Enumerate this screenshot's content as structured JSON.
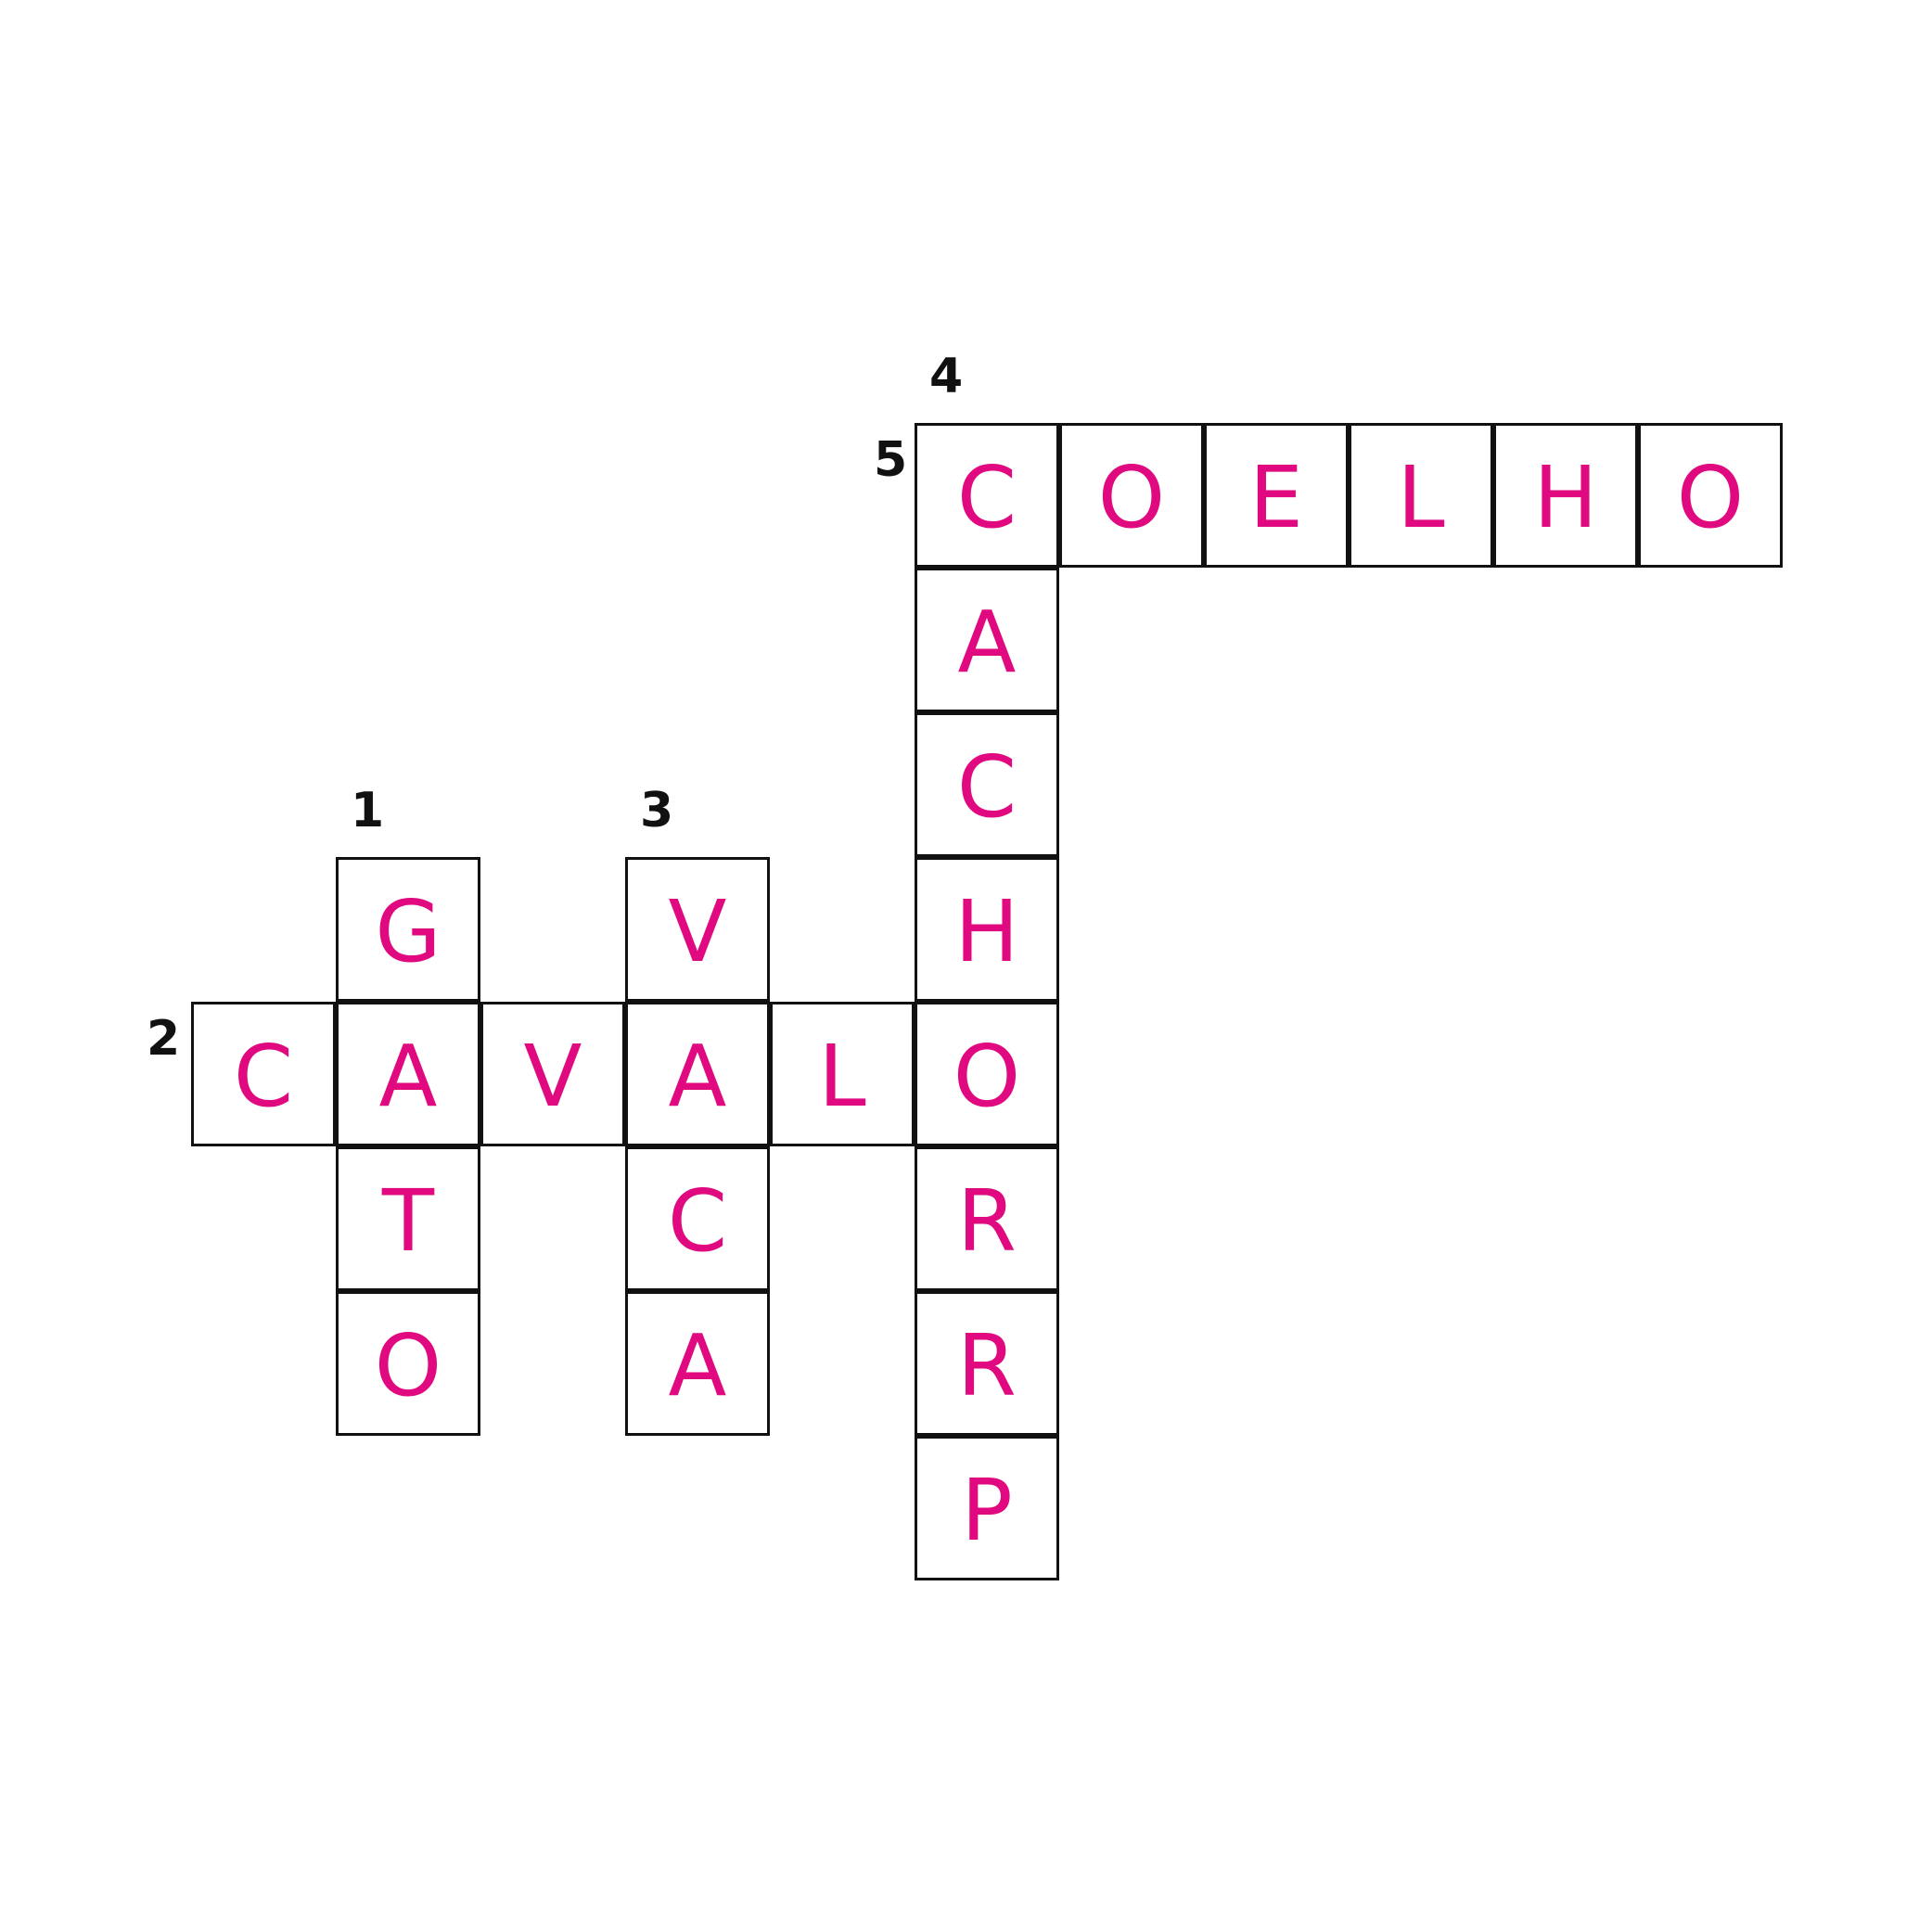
{
  "puzzle": {
    "letter_color": "#e0097f",
    "grid_line_color": "#111111",
    "clue_numbers": [
      "1",
      "2",
      "3",
      "4",
      "5"
    ],
    "words": [
      {
        "number": "1",
        "direction": "down",
        "answer": "GATO",
        "letters": [
          "G",
          "A",
          "T",
          "O"
        ]
      },
      {
        "number": "2",
        "direction": "across",
        "answer": "CAVALO",
        "letters": [
          "C",
          "A",
          "V",
          "A",
          "L",
          "O"
        ]
      },
      {
        "number": "3",
        "direction": "down",
        "answer": "VACA",
        "letters": [
          "V",
          "A",
          "C",
          "A"
        ]
      },
      {
        "number": "4",
        "direction": "down",
        "answer": "CACHORRP",
        "letters": [
          "C",
          "A",
          "C",
          "H",
          "O",
          "R",
          "R",
          "P"
        ]
      },
      {
        "number": "5",
        "direction": "across",
        "answer": "COELHO",
        "letters": [
          "C",
          "O",
          "E",
          "L",
          "H",
          "O"
        ]
      }
    ]
  }
}
